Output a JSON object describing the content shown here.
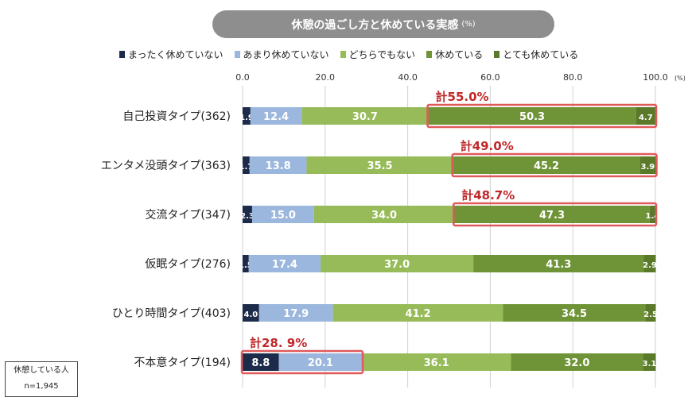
{
  "title": "休憩の過ごし方と休めている実感",
  "title_unit": "(%)",
  "note": {
    "line1": "休憩している人",
    "line2": "n=1,945"
  },
  "colors": {
    "s1": "#1d2b4a",
    "s2": "#9bb7dd",
    "s3": "#96bb58",
    "s4": "#6f9437",
    "s5": "#5a7a2a",
    "highlight": "#e05a5a",
    "total_text": "#c0282a",
    "grid": "#d0d0d0"
  },
  "chart_data": {
    "type": "bar",
    "orientation": "horizontal",
    "stacked": true,
    "unit": "(%)",
    "xlim": [
      0,
      100
    ],
    "ticks": [
      "0.0",
      "20.0",
      "40.0",
      "60.0",
      "80.0",
      "100.0"
    ],
    "categories": [
      "自己投資タイプ(362)",
      "エンタメ没頭タイプ(363)",
      "交流タイプ(347)",
      "仮眠タイプ(276)",
      "ひとり時間タイプ(403)",
      "不本意タイプ(194)"
    ],
    "series": [
      {
        "name": "まったく休めていない",
        "values": [
          1.9,
          1.7,
          2.3,
          1.5,
          4.0,
          8.8
        ]
      },
      {
        "name": "あまり休めていない",
        "values": [
          12.4,
          13.8,
          15.0,
          17.4,
          17.9,
          20.1
        ]
      },
      {
        "name": "どちらでもない",
        "values": [
          30.7,
          35.5,
          34.0,
          37.0,
          41.2,
          36.1
        ]
      },
      {
        "name": "休めている",
        "values": [
          50.3,
          45.2,
          47.3,
          41.3,
          34.5,
          32.0
        ]
      },
      {
        "name": "とても休めている",
        "values": [
          4.7,
          3.9,
          1.4,
          2.9,
          2.5,
          3.1
        ]
      }
    ],
    "annotations": [
      {
        "row": 0,
        "label": "計55.0%",
        "series_from": 3,
        "series_to": 4
      },
      {
        "row": 1,
        "label": "計49.0%",
        "series_from": 3,
        "series_to": 4
      },
      {
        "row": 2,
        "label": "計48.7%",
        "series_from": 3,
        "series_to": 4
      },
      {
        "row": 5,
        "label": "計28. 9%",
        "series_from": 0,
        "series_to": 1
      }
    ]
  }
}
